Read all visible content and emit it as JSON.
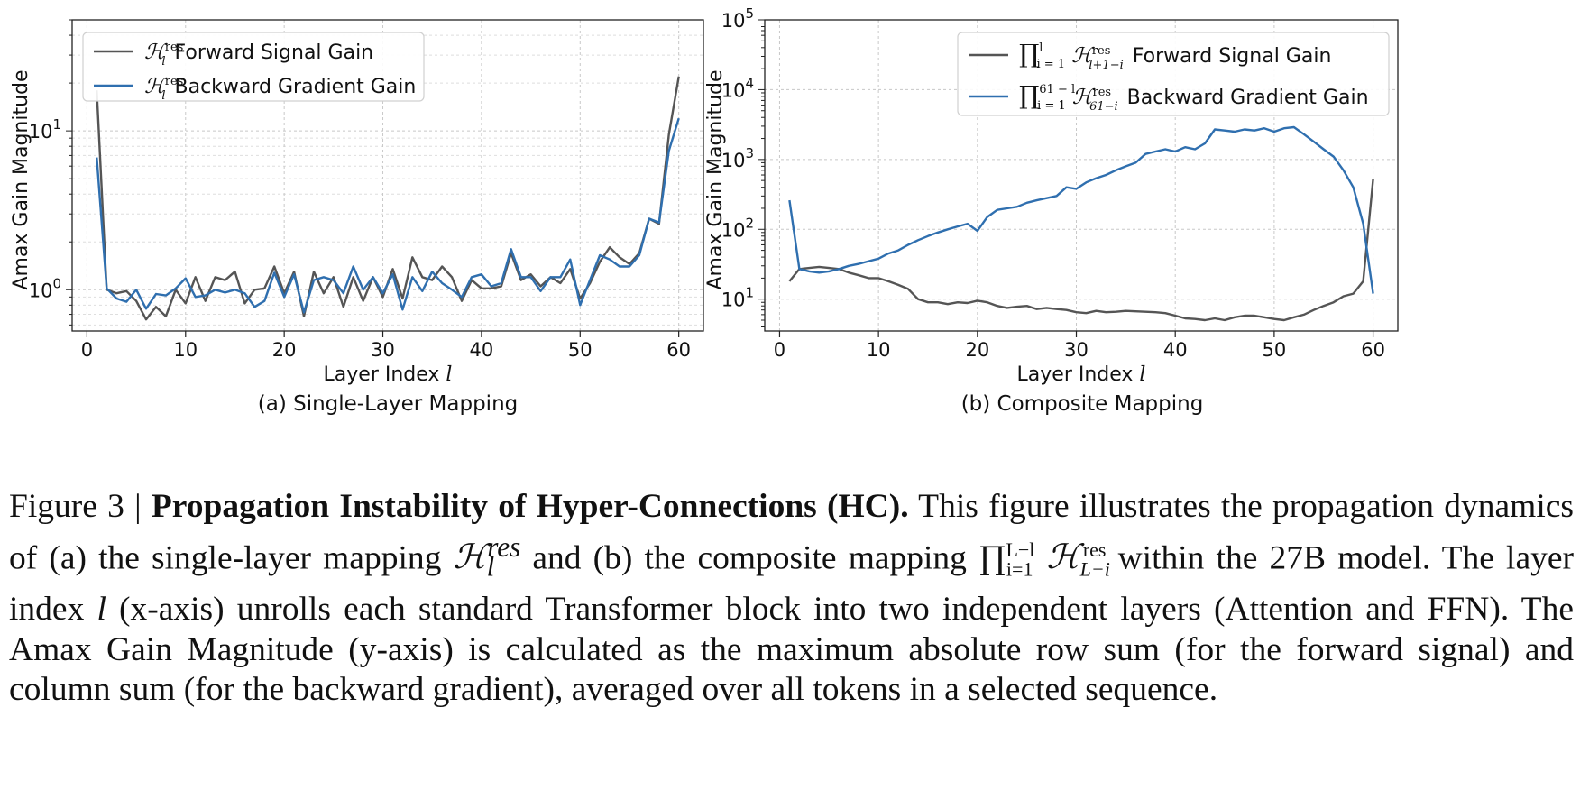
{
  "colors": {
    "forward": "#555555",
    "backward": "#2f6faf"
  },
  "chart_data": [
    {
      "type": "line",
      "subcaption": "(a) Single-Layer Mapping",
      "xlabel": "Layer Index",
      "xlabel_var": "l",
      "ylabel": "Amax Gain Magnitude",
      "yscale": "log",
      "xlim": [
        -1.5,
        62.5
      ],
      "ylim": [
        0.55,
        50
      ],
      "xticks": [
        0,
        10,
        20,
        30,
        40,
        50,
        60
      ],
      "yticks": [
        {
          "value": 1,
          "base": "10",
          "exp": "0"
        },
        {
          "value": 10,
          "base": "10",
          "exp": "1"
        }
      ],
      "grid": true,
      "legend_position": "upper-left",
      "x": [
        1,
        2,
        3,
        4,
        5,
        6,
        7,
        8,
        9,
        10,
        11,
        12,
        13,
        14,
        15,
        16,
        17,
        18,
        19,
        20,
        21,
        22,
        23,
        24,
        25,
        26,
        27,
        28,
        29,
        30,
        31,
        32,
        33,
        34,
        35,
        36,
        37,
        38,
        39,
        40,
        41,
        42,
        43,
        44,
        45,
        46,
        47,
        48,
        49,
        50,
        51,
        52,
        53,
        54,
        55,
        56,
        57,
        58,
        59,
        60
      ],
      "series": [
        {
          "name": "Forward Signal Gain",
          "legend_math": "ℋ",
          "legend_sub": "l",
          "legend_sup": "res",
          "color_key": "forward",
          "values": [
            18,
            1.0,
            0.95,
            0.98,
            0.85,
            0.65,
            0.78,
            0.68,
            1.0,
            0.82,
            1.2,
            0.85,
            1.2,
            1.15,
            1.3,
            0.82,
            1.0,
            1.02,
            1.4,
            0.95,
            1.3,
            0.68,
            1.3,
            0.95,
            1.2,
            0.78,
            1.2,
            0.85,
            1.2,
            0.9,
            1.35,
            0.88,
            1.6,
            1.2,
            1.15,
            1.4,
            1.2,
            0.85,
            1.15,
            1.02,
            1.02,
            1.05,
            1.7,
            1.15,
            1.25,
            1.05,
            1.2,
            1.1,
            1.35,
            0.88,
            1.1,
            1.5,
            1.85,
            1.6,
            1.45,
            1.7,
            2.8,
            2.6,
            9.5,
            22
          ]
        },
        {
          "name": "Backward Gradient Gain",
          "legend_math": "ℋ",
          "legend_sub": "l",
          "legend_sup": "res",
          "color_key": "backward",
          "values": [
            6.8,
            1.02,
            0.88,
            0.84,
            1.0,
            0.76,
            0.94,
            0.92,
            1.02,
            1.18,
            0.9,
            0.92,
            1.0,
            0.96,
            1.0,
            0.95,
            0.78,
            0.85,
            1.28,
            0.9,
            1.25,
            0.72,
            1.15,
            1.2,
            1.15,
            0.95,
            1.4,
            1.0,
            1.2,
            0.95,
            1.25,
            0.75,
            1.2,
            0.98,
            1.3,
            1.1,
            1.0,
            0.9,
            1.2,
            1.25,
            1.05,
            1.1,
            1.8,
            1.2,
            1.2,
            0.98,
            1.2,
            1.2,
            1.55,
            0.8,
            1.15,
            1.65,
            1.55,
            1.4,
            1.4,
            1.65,
            2.8,
            2.65,
            7.5,
            12
          ]
        }
      ]
    },
    {
      "type": "line",
      "subcaption": "(b) Composite Mapping",
      "xlabel": "Layer Index",
      "xlabel_var": "l",
      "ylabel": "Amax Gain Magnitude",
      "yscale": "log",
      "xlim": [
        -1.5,
        62.5
      ],
      "ylim": [
        3.5,
        100000
      ],
      "xticks": [
        0,
        10,
        20,
        30,
        40,
        50,
        60
      ],
      "yticks": [
        {
          "value": 10,
          "base": "10",
          "exp": "1"
        },
        {
          "value": 100,
          "base": "10",
          "exp": "2"
        },
        {
          "value": 1000,
          "base": "10",
          "exp": "3"
        },
        {
          "value": 10000,
          "base": "10",
          "exp": "4"
        },
        {
          "value": 100000,
          "base": "10",
          "exp": "5"
        }
      ],
      "grid": true,
      "legend_position": "upper-right",
      "x": [
        1,
        2,
        3,
        4,
        5,
        6,
        7,
        8,
        9,
        10,
        11,
        12,
        13,
        14,
        15,
        16,
        17,
        18,
        19,
        20,
        21,
        22,
        23,
        24,
        25,
        26,
        27,
        28,
        29,
        30,
        31,
        32,
        33,
        34,
        35,
        36,
        37,
        38,
        39,
        40,
        41,
        42,
        43,
        44,
        45,
        46,
        47,
        48,
        49,
        50,
        51,
        52,
        53,
        54,
        55,
        56,
        57,
        58,
        59,
        60
      ],
      "series": [
        {
          "name": "Forward Signal Gain",
          "legend_prod_sub": "i = 1",
          "legend_prod_sup": "l",
          "legend_math": "ℋ",
          "legend_sub": "l+1−i",
          "legend_sup": "res",
          "color_key": "forward",
          "values": [
            18,
            27,
            28,
            29,
            28,
            27,
            24,
            22,
            20,
            20,
            18,
            16,
            14,
            10,
            9,
            9,
            8.5,
            9,
            8.8,
            9.5,
            9,
            8,
            7.5,
            7.8,
            8,
            7.2,
            7.5,
            7.2,
            7,
            6.5,
            6.3,
            6.8,
            6.5,
            6.6,
            6.8,
            6.7,
            6.6,
            6.5,
            6.3,
            5.8,
            5.3,
            5.2,
            5,
            5.3,
            5,
            5.5,
            5.8,
            5.8,
            5.5,
            5.2,
            5,
            5.5,
            6,
            7,
            8,
            9,
            11,
            12,
            18,
            520
          ]
        },
        {
          "name": "Backward Gradient Gain",
          "legend_prod_sub": "i = 1",
          "legend_prod_sup": "61 − l",
          "legend_math": "ℋ",
          "legend_sub": "61−i",
          "legend_sup": "res",
          "color_key": "backward",
          "values": [
            260,
            27,
            25,
            24,
            25,
            27,
            30,
            32,
            35,
            38,
            45,
            50,
            60,
            70,
            80,
            90,
            100,
            110,
            120,
            95,
            150,
            190,
            200,
            210,
            240,
            260,
            280,
            300,
            400,
            380,
            470,
            540,
            600,
            700,
            800,
            900,
            1200,
            1300,
            1400,
            1300,
            1500,
            1400,
            1700,
            2700,
            2600,
            2500,
            2700,
            2600,
            2800,
            2500,
            2800,
            2900,
            2300,
            1800,
            1400,
            1100,
            700,
            400,
            120,
            12
          ]
        }
      ]
    }
  ],
  "caption": {
    "label": "Figure 3 | ",
    "bold": "Propagation Instability of Hyper-Connections (HC).",
    "t1": " This figure illustrates the propagation dynamics of (a) the single-layer mapping ",
    "m1": "ℋ",
    "m1_sub": "l",
    "m1_sup": "res",
    "t2": " and (b) the composite mapping ",
    "m2_prod": "∏",
    "m2_prod_sub": "i=1",
    "m2_prod_sup": "L−l",
    "m2": "ℋ",
    "m2_sub": "L−i",
    "m2_sup": "res",
    "t3": " within the 27B model. The layer index ",
    "m3": "l",
    "t4": " (x-axis) unrolls each standard Transformer block into two independent layers (Attention and FFN). The Amax Gain Magnitude (y-axis) is calculated as the maximum absolute row sum (for the forward signal) and column sum (for the backward gradient), averaged over all tokens in a selected sequence."
  }
}
